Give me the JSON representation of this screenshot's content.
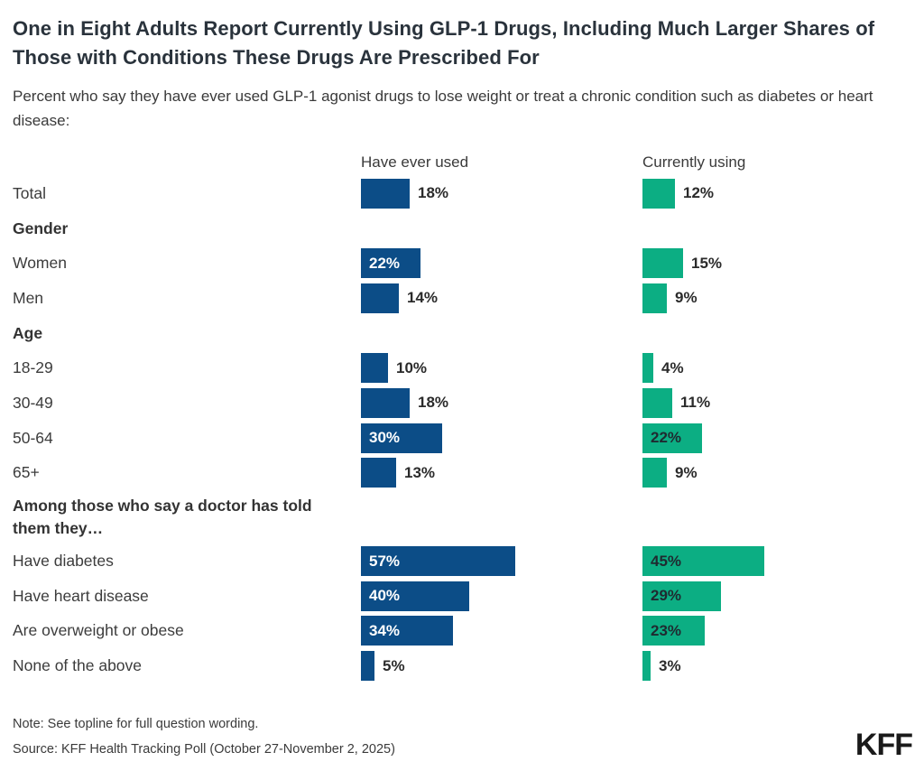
{
  "header": {
    "title": "One in Eight Adults Report Currently Using GLP-1 Drugs, Including Much Larger Shares of Those with Conditions These Drugs Are Prescribed For",
    "subtitle": "Percent who say they have ever used GLP-1 agonist drugs to lose weight or treat a chronic condition such as diabetes or heart disease:"
  },
  "chart_data": {
    "type": "bar",
    "orientation": "horizontal",
    "unit": "%",
    "value_range": [
      0,
      60
    ],
    "grid": false,
    "legend_position": "column-headers-top",
    "series": [
      {
        "name": "Have ever used",
        "color": "#0C4D87",
        "inside_label_color": "#ffffff"
      },
      {
        "name": "Currently using",
        "color": "#0CAE83",
        "inside_label_color": "#1f2a30"
      }
    ],
    "inside_label_min_value": 22,
    "rows": [
      {
        "type": "data",
        "label": "Total",
        "values": [
          18,
          12
        ]
      },
      {
        "type": "section",
        "label": "Gender"
      },
      {
        "type": "data",
        "label": "Women",
        "values": [
          22,
          15
        ]
      },
      {
        "type": "data",
        "label": "Men",
        "values": [
          14,
          9
        ]
      },
      {
        "type": "section",
        "label": "Age"
      },
      {
        "type": "data",
        "label": "18-29",
        "values": [
          10,
          4
        ]
      },
      {
        "type": "data",
        "label": "30-49",
        "values": [
          18,
          11
        ]
      },
      {
        "type": "data",
        "label": "50-64",
        "values": [
          30,
          22
        ]
      },
      {
        "type": "data",
        "label": "65+",
        "values": [
          13,
          9
        ]
      },
      {
        "type": "section",
        "label": "Among those who say a doctor has told them they…",
        "multiline": true
      },
      {
        "type": "data",
        "label": "Have diabetes",
        "values": [
          57,
          45
        ]
      },
      {
        "type": "data",
        "label": "Have heart disease",
        "values": [
          40,
          29
        ]
      },
      {
        "type": "data",
        "label": "Are overweight or obese",
        "values": [
          34,
          23
        ]
      },
      {
        "type": "data",
        "label": "None of the above",
        "values": [
          5,
          3
        ]
      }
    ]
  },
  "footer": {
    "note": "Note: See topline for full question wording.",
    "source": "Source: KFF Health Tracking Poll (October 27-November 2, 2025)",
    "logo": "KFF"
  }
}
